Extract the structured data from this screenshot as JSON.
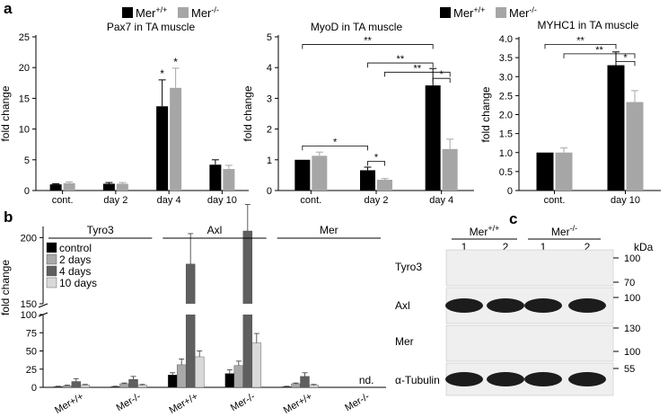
{
  "colors": {
    "wt": "#000000",
    "ko": "#a6a6a6",
    "control": "#000000",
    "day2": "#a9a9a9",
    "day4": "#5f5f5f",
    "day10": "#d9d9d9",
    "blot_bg": "#efefef",
    "band": "#1c1c1c"
  },
  "panels": {
    "a_label": "a",
    "b_label": "b",
    "c_label": "c"
  },
  "legend_a": {
    "wt": "Mer",
    "wt_sup": "+/+",
    "ko": "Mer",
    "ko_sup": "-/-"
  },
  "chart_data": [
    {
      "id": "pax7",
      "type": "bar",
      "title": "Pax7 in TA muscle",
      "ylabel": "fold change",
      "ylim": [
        0,
        25
      ],
      "yticks": [
        0,
        5,
        10,
        15,
        20,
        25
      ],
      "categories": [
        "cont.",
        "day 2",
        "day 4",
        "day 10"
      ],
      "series": [
        {
          "name": "Mer+/+",
          "values": [
            1.0,
            1.1,
            13.7,
            4.2
          ],
          "errors": [
            0.1,
            0.2,
            4.3,
            0.8
          ]
        },
        {
          "name": "Mer-/-",
          "values": [
            1.2,
            1.1,
            16.7,
            3.5
          ],
          "errors": [
            0.2,
            0.2,
            3.2,
            0.6
          ]
        }
      ],
      "annotations": [
        {
          "category": "day 4",
          "series": 0,
          "text": "*"
        },
        {
          "category": "day 4",
          "series": 1,
          "text": "*"
        }
      ]
    },
    {
      "id": "myod",
      "type": "bar",
      "title": "MyoD in TA muscle",
      "ylabel": "fold change",
      "ylim": [
        0,
        5
      ],
      "yticks": [
        0,
        1,
        2,
        3,
        4,
        5
      ],
      "categories": [
        "cont.",
        "day 2",
        "day 4"
      ],
      "series": [
        {
          "name": "Mer+/+",
          "values": [
            1.0,
            0.66,
            3.42
          ],
          "errors": [
            0.0,
            0.1,
            0.55
          ]
        },
        {
          "name": "Mer-/-",
          "values": [
            1.13,
            0.35,
            1.35
          ],
          "errors": [
            0.12,
            0.04,
            0.32
          ]
        }
      ],
      "significance": [
        {
          "from": [
            "cont.",
            0
          ],
          "to": [
            "day 4",
            0
          ],
          "level": 4.75,
          "text": "**"
        },
        {
          "from": [
            "day 2",
            0
          ],
          "to": [
            "day 4",
            0
          ],
          "level": 4.15,
          "text": "**"
        },
        {
          "from": [
            "day 2",
            1
          ],
          "to": [
            "day 4",
            1
          ],
          "level": 3.85,
          "text": "**"
        },
        {
          "from": [
            "day 4",
            0
          ],
          "to": [
            "day 4",
            1
          ],
          "level": 3.65,
          "text": "*"
        },
        {
          "from": [
            "cont.",
            0
          ],
          "to": [
            "day 2",
            0
          ],
          "level": 1.45,
          "text": "*"
        },
        {
          "from": [
            "day 2",
            0
          ],
          "to": [
            "day 2",
            1
          ],
          "level": 0.95,
          "text": "*"
        }
      ]
    },
    {
      "id": "myhc1",
      "type": "bar",
      "title": "MYHC1 in TA muscle",
      "ylabel": "fold change",
      "ylim": [
        0,
        4.0
      ],
      "yticks": [
        0,
        0.5,
        1.0,
        1.5,
        2.0,
        2.5,
        3.0,
        3.5,
        4.0
      ],
      "yticklabels": [
        "0",
        "0.5",
        "1.0",
        "1.5",
        "2.0",
        "2.5",
        "3.0",
        "3.5",
        "4.0"
      ],
      "categories": [
        "cont.",
        "day 10"
      ],
      "series": [
        {
          "name": "Mer+/+",
          "values": [
            1.0,
            3.3
          ],
          "errors": [
            0.0,
            0.35
          ]
        },
        {
          "name": "Mer-/-",
          "values": [
            1.0,
            2.33
          ],
          "errors": [
            0.12,
            0.3
          ]
        }
      ],
      "significance": [
        {
          "from": [
            "cont.",
            0
          ],
          "to": [
            "day 10",
            0
          ],
          "level": 3.85,
          "text": "**"
        },
        {
          "from": [
            "cont.",
            1
          ],
          "to": [
            "day 10",
            1
          ],
          "level": 3.6,
          "text": "**"
        },
        {
          "from": [
            "day 10",
            0
          ],
          "to": [
            "day 10",
            1
          ],
          "level": 3.4,
          "text": "*"
        }
      ]
    },
    {
      "id": "tam",
      "type": "bar",
      "ylabel": "fold change",
      "yticks": [
        0,
        25,
        50,
        75,
        100,
        150,
        200
      ],
      "axis_break": [
        100,
        150
      ],
      "receptor_groups": [
        "Tyro3",
        "Axl",
        "Mer"
      ],
      "categories": [
        "Mer+/+",
        "Mer-/-",
        "Mer+/+",
        "Mer-/-",
        "Mer+/+",
        "Mer-/-"
      ],
      "series": [
        {
          "name": "control",
          "values": [
            1,
            1,
            17,
            19,
            1,
            0
          ],
          "errors": [
            0.5,
            0.5,
            3,
            5,
            0.5,
            0
          ]
        },
        {
          "name": "2 days",
          "values": [
            2,
            5,
            31,
            30,
            5,
            0
          ],
          "errors": [
            1,
            1,
            8,
            6,
            1,
            0
          ]
        },
        {
          "name": "4 days",
          "values": [
            8,
            11,
            180,
            205,
            15,
            0
          ],
          "errors": [
            4,
            4,
            23,
            20,
            5,
            0
          ]
        },
        {
          "name": "10 days",
          "values": [
            3,
            3,
            42,
            61,
            3,
            0
          ],
          "errors": [
            1,
            1,
            8,
            13,
            1,
            0
          ]
        }
      ],
      "annotations": [
        {
          "category_index": 5,
          "text": "nd."
        }
      ]
    }
  ],
  "blot": {
    "header_groups": [
      {
        "name": "Mer",
        "sup": "+/+"
      },
      {
        "name": "Mer",
        "sup": "-/-"
      }
    ],
    "lanes": [
      "1",
      "2",
      "1",
      "2"
    ],
    "unit": "kDa",
    "rows": [
      {
        "label": "Tyro3",
        "markers": [
          "100",
          "70"
        ],
        "bands": [
          0,
          0,
          0,
          0
        ]
      },
      {
        "label": "Axl",
        "markers": [
          "100"
        ],
        "bands": [
          1,
          1,
          1,
          1
        ]
      },
      {
        "label": "Mer",
        "markers": [
          "130",
          "100"
        ],
        "bands": [
          0,
          0,
          0,
          0
        ]
      },
      {
        "label": "α-Tubulin",
        "markers": [
          "55"
        ],
        "bands": [
          1,
          1,
          1,
          1
        ]
      }
    ]
  }
}
